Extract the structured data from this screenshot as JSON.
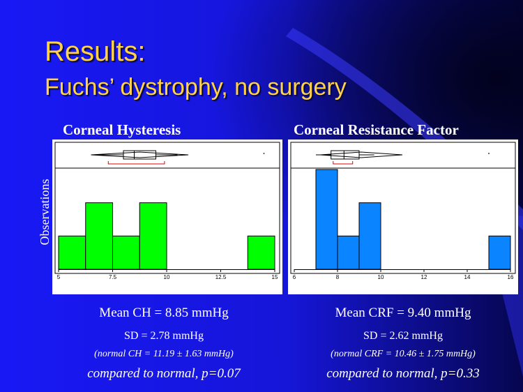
{
  "slide": {
    "title_line1": "Results:",
    "title_line2": "Fuchs’ dystrophy, no surgery",
    "colors": {
      "background": "#1b1bf2",
      "title": "#ffd24a",
      "text": "#ffffff"
    },
    "y_axis_label": "Observations"
  },
  "stats": {
    "ch": {
      "mean": "Mean CH = 8.85 mmHg",
      "sd": "SD = 2.78 mmHg",
      "normal": "(normal CH = 11.19 ± 1.63 mmHg)",
      "comparison": "compared to normal, p=0.07"
    },
    "crf": {
      "mean": "Mean CRF = 9.40 mmHg",
      "sd": "SD = 2.62 mmHg",
      "normal": "(normal CRF = 10.46 ± 1.75 mmHg)",
      "comparison": "compared to normal, p=0.33"
    }
  },
  "chart_data": [
    {
      "type": "bar",
      "title": "Corneal Hysteresis",
      "ylabel": "Observations",
      "bar_color": "#00ff00",
      "xlim": [
        5,
        15
      ],
      "ylim": [
        0,
        3
      ],
      "x_ticks": [
        5,
        7.5,
        10,
        12.5,
        15
      ],
      "x_tick_labels": [
        "5",
        "7.5",
        "10",
        "12.5",
        "15"
      ],
      "bins": [
        {
          "start": 5.0,
          "end": 6.25,
          "count": 1
        },
        {
          "start": 6.25,
          "end": 7.5,
          "count": 2
        },
        {
          "start": 7.5,
          "end": 8.75,
          "count": 1
        },
        {
          "start": 8.75,
          "end": 10.0,
          "count": 2
        },
        {
          "start": 13.75,
          "end": 15.0,
          "count": 1
        }
      ],
      "boxplot": {
        "whisker_low": 6.5,
        "q1": 8.0,
        "median": 8.5,
        "q3": 9.5,
        "whisker_high": 10.5,
        "outlier": 14.5
      },
      "mean_diamond": [
        6.5,
        11.0
      ],
      "bracket": [
        7.3,
        9.9
      ]
    },
    {
      "type": "bar",
      "title": "Corneal Resistance Factor",
      "ylabel": "Observations",
      "bar_color": "#0a84ff",
      "xlim": [
        6,
        16
      ],
      "ylim": [
        0,
        3
      ],
      "x_ticks": [
        6,
        8,
        10,
        12,
        14,
        16
      ],
      "x_tick_labels": [
        "6",
        "8",
        "10",
        "12",
        "14",
        "16"
      ],
      "bins": [
        {
          "start": 7.0,
          "end": 8.0,
          "count": 3
        },
        {
          "start": 8.0,
          "end": 9.0,
          "count": 1
        },
        {
          "start": 9.0,
          "end": 10.0,
          "count": 2
        },
        {
          "start": 15.0,
          "end": 16.0,
          "count": 1
        }
      ],
      "boxplot": {
        "whisker_low": 7.0,
        "q1": 7.7,
        "median": 8.3,
        "q3": 9.0,
        "whisker_high": 9.7,
        "outlier": 15.0
      },
      "mean_diamond": [
        7.2,
        11.0
      ],
      "bracket": [
        7.8,
        8.7
      ]
    }
  ]
}
